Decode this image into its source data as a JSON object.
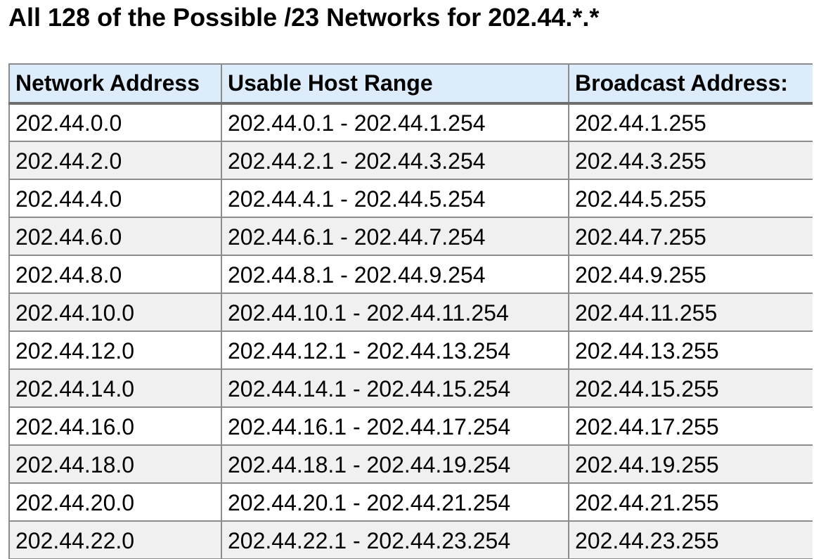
{
  "page": {
    "title": "All 128 of the Possible /23 Networks for 202.44.*.*"
  },
  "table": {
    "headers": {
      "network": "Network Address",
      "range": "Usable Host Range",
      "broadcast": "Broadcast Address:"
    },
    "rows": [
      {
        "network": "202.44.0.0",
        "range": "202.44.0.1 - 202.44.1.254",
        "broadcast": "202.44.1.255"
      },
      {
        "network": "202.44.2.0",
        "range": "202.44.2.1 - 202.44.3.254",
        "broadcast": "202.44.3.255"
      },
      {
        "network": "202.44.4.0",
        "range": "202.44.4.1 - 202.44.5.254",
        "broadcast": "202.44.5.255"
      },
      {
        "network": "202.44.6.0",
        "range": "202.44.6.1 - 202.44.7.254",
        "broadcast": "202.44.7.255"
      },
      {
        "network": "202.44.8.0",
        "range": "202.44.8.1 - 202.44.9.254",
        "broadcast": "202.44.9.255"
      },
      {
        "network": "202.44.10.0",
        "range": "202.44.10.1 - 202.44.11.254",
        "broadcast": "202.44.11.255"
      },
      {
        "network": "202.44.12.0",
        "range": "202.44.12.1 - 202.44.13.254",
        "broadcast": "202.44.13.255"
      },
      {
        "network": "202.44.14.0",
        "range": "202.44.14.1 - 202.44.15.254",
        "broadcast": "202.44.15.255"
      },
      {
        "network": "202.44.16.0",
        "range": "202.44.16.1 - 202.44.17.254",
        "broadcast": "202.44.17.255"
      },
      {
        "network": "202.44.18.0",
        "range": "202.44.18.1 - 202.44.19.254",
        "broadcast": "202.44.19.255"
      },
      {
        "network": "202.44.20.0",
        "range": "202.44.20.1 - 202.44.21.254",
        "broadcast": "202.44.21.255"
      },
      {
        "network": "202.44.22.0",
        "range": "202.44.22.1 - 202.44.23.254",
        "broadcast": "202.44.23.255"
      }
    ]
  }
}
